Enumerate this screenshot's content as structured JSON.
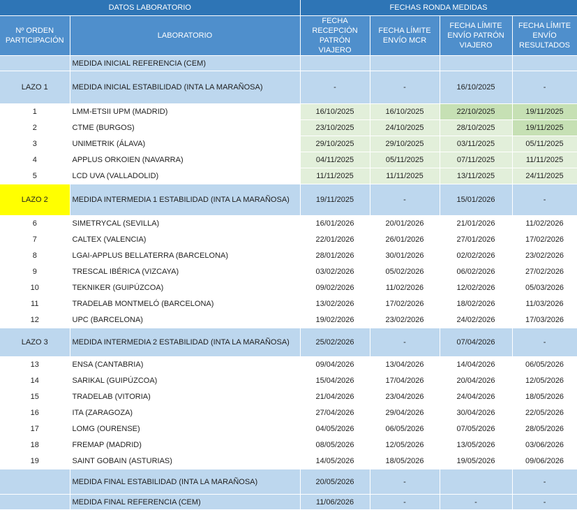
{
  "header": {
    "group_left": "DATOS LABORATORIO",
    "group_right": "FECHAS RONDA MEDIDAS",
    "col_order": "Nº ORDEN PARTICIPACIÓN",
    "col_lab": "LABORATORIO",
    "col_reception": "FECHA RECEPCIÓN PATRÓN VIAJERO",
    "col_mcr": "FECHA LÍMITE ENVÍO MCR",
    "col_patron": "FECHA LÍMITE ENVÍO PATRÓN VIAJERO",
    "col_results": "FECHA LÍMITE ENVÍO RESULTADOS"
  },
  "rows": [
    {
      "kind": "band",
      "height": 22,
      "order": "",
      "lab": "MEDIDA INICIAL REFERENCIA (CEM)",
      "d1": "",
      "d2": "",
      "d3": "",
      "d4": ""
    },
    {
      "kind": "band",
      "height": 47,
      "order": "LAZO 1",
      "lab": "MEDIDA INICIAL ESTABILIDAD (INTA LA MARAÑOSA)",
      "d1": "-",
      "d2": "-",
      "d3": "16/10/2025",
      "d4": "-"
    },
    {
      "kind": "plain",
      "order": "1",
      "lab": "LMM-ETSII UPM (MADRID)",
      "d1": "16/10/2025",
      "d2": "16/10/2025",
      "d3": "22/10/2025",
      "d4": "19/11/2025",
      "shade": [
        "g1",
        "g1",
        "g2",
        "g2"
      ]
    },
    {
      "kind": "plain",
      "order": "2",
      "lab": "CTME (BURGOS)",
      "d1": "23/10/2025",
      "d2": "24/10/2025",
      "d3": "28/10/2025",
      "d4": "19/11/2025",
      "shade": [
        "g1",
        "g1",
        "g1",
        "g2"
      ]
    },
    {
      "kind": "plain",
      "order": "3",
      "lab": "UNIMETRIK (ÁLAVA)",
      "d1": "29/10/2025",
      "d2": "29/10/2025",
      "d3": "03/11/2025",
      "d4": "05/11/2025",
      "shade": [
        "g1",
        "g1",
        "g1",
        "g1"
      ]
    },
    {
      "kind": "plain",
      "order": "4",
      "lab": "APPLUS ORKOIEN (NAVARRA)",
      "d1": "04/11/2025",
      "d2": "05/11/2025",
      "d3": "07/11/2025",
      "d4": "11/11/2025",
      "shade": [
        "g1",
        "g1",
        "g1",
        "g1"
      ]
    },
    {
      "kind": "plain",
      "order": "5",
      "lab": "LCD UVA (VALLADOLID)",
      "d1": "11/11/2025",
      "d2": "11/11/2025",
      "d3": "13/11/2025",
      "d4": "24/11/2025",
      "shade": [
        "g1",
        "g1",
        "g1",
        "g1"
      ]
    },
    {
      "kind": "band",
      "height": 45,
      "order": "LAZO 2",
      "highlight": true,
      "lab": "MEDIDA INTERMEDIA 1 ESTABILIDAD (INTA LA MARAÑOSA)",
      "d1": "19/11/2025",
      "d2": "-",
      "d3": "15/01/2026",
      "d4": "-"
    },
    {
      "kind": "plain",
      "order": "6",
      "lab": "SIMETRYCAL (SEVILLA)",
      "d1": "16/01/2026",
      "d2": "20/01/2026",
      "d3": "21/01/2026",
      "d4": "11/02/2026"
    },
    {
      "kind": "plain",
      "order": "7",
      "lab": "CALTEX (VALENCIA)",
      "d1": "22/01/2026",
      "d2": "26/01/2026",
      "d3": "27/01/2026",
      "d4": "17/02/2026"
    },
    {
      "kind": "plain",
      "order": "8",
      "lab": "LGAI-APPLUS BELLATERRA (BARCELONA)",
      "d1": "28/01/2026",
      "d2": "30/01/2026",
      "d3": "02/02/2026",
      "d4": "23/02/2026"
    },
    {
      "kind": "plain",
      "order": "9",
      "lab": "TRESCAL IBÉRICA (VIZCAYA)",
      "d1": "03/02/2026",
      "d2": "05/02/2026",
      "d3": "06/02/2026",
      "d4": "27/02/2026"
    },
    {
      "kind": "plain",
      "order": "10",
      "lab": "TEKNIKER (GUIPÚZCOA)",
      "d1": "09/02/2026",
      "d2": "11/02/2026",
      "d3": "12/02/2026",
      "d4": "05/03/2026"
    },
    {
      "kind": "plain",
      "order": "11",
      "lab": "TRADELAB MONTMELÓ (BARCELONA)",
      "d1": "13/02/2026",
      "d2": "17/02/2026",
      "d3": "18/02/2026",
      "d4": "11/03/2026"
    },
    {
      "kind": "plain",
      "order": "12",
      "lab": "UPC (BARCELONA)",
      "d1": "19/02/2026",
      "d2": "23/02/2026",
      "d3": "24/02/2026",
      "d4": "17/03/2026"
    },
    {
      "kind": "band",
      "height": 41,
      "order": "LAZO 3",
      "lab": "MEDIDA INTERMEDIA 2 ESTABILIDAD (INTA LA MARAÑOSA)",
      "d1": "25/02/2026",
      "d2": "-",
      "d3": "07/04/2026",
      "d4": "-"
    },
    {
      "kind": "plain",
      "order": "13",
      "lab": "ENSA (CANTABRIA)",
      "d1": "09/04/2026",
      "d2": "13/04/2026",
      "d3": "14/04/2026",
      "d4": "06/05/2026"
    },
    {
      "kind": "plain",
      "order": "14",
      "lab": "SARIKAL (GUIPÚZCOA)",
      "d1": "15/04/2026",
      "d2": "17/04/2026",
      "d3": "20/04/2026",
      "d4": "12/05/2026"
    },
    {
      "kind": "plain",
      "order": "15",
      "lab": "TRADELAB (VITORIA)",
      "d1": "21/04/2026",
      "d2": "23/04/2026",
      "d3": "24/04/2026",
      "d4": "18/05/2026"
    },
    {
      "kind": "plain",
      "order": "16",
      "lab": "ITA (ZARAGOZA)",
      "d1": "27/04/2026",
      "d2": "29/04/2026",
      "d3": "30/04/2026",
      "d4": "22/05/2026"
    },
    {
      "kind": "plain",
      "order": "17",
      "lab": "LOMG (OURENSE)",
      "d1": "04/05/2026",
      "d2": "06/05/2026",
      "d3": "07/05/2026",
      "d4": "28/05/2026"
    },
    {
      "kind": "plain",
      "order": "18",
      "lab": "FREMAP (MADRID)",
      "d1": "08/05/2026",
      "d2": "12/05/2026",
      "d3": "13/05/2026",
      "d4": "03/06/2026"
    },
    {
      "kind": "plain",
      "order": "19",
      "lab": "SAINT GOBAIN (ASTURIAS)",
      "d1": "14/05/2026",
      "d2": "18/05/2026",
      "d3": "19/05/2026",
      "d4": "09/06/2026"
    },
    {
      "kind": "band",
      "height": 36,
      "order": "",
      "lab": "MEDIDA FINAL ESTABILIDAD (INTA LA MARAÑOSA)",
      "d1": "20/05/2026",
      "d2": "-",
      "d3": "",
      "d4": "-"
    },
    {
      "kind": "band",
      "height": 22,
      "order": "",
      "lab": "MEDIDA FINAL REFERENCIA (CEM)",
      "d1": "11/06/2026",
      "d2": "-",
      "d3": "-",
      "d4": "-"
    }
  ]
}
